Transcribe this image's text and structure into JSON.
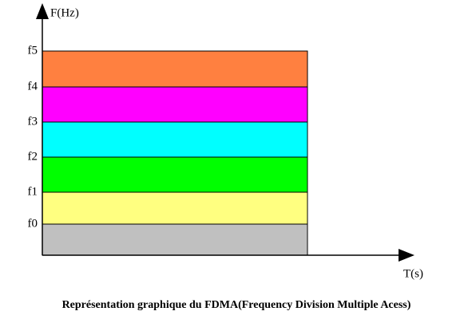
{
  "axes": {
    "y_label": "F(Hz)",
    "x_label": "T(s)"
  },
  "frequency_labels": [
    "f0",
    "f1",
    "f2",
    "f3",
    "f4",
    "f5"
  ],
  "bands": [
    {
      "color": "#c0c0c0"
    },
    {
      "color": "#ffff80"
    },
    {
      "color": "#00ff00"
    },
    {
      "color": "#00ffff"
    },
    {
      "color": "#ff00ff"
    },
    {
      "color": "#ff8040"
    }
  ],
  "caption": "Représentation graphique du FDMA(Frequency Division Multiple Acess)"
}
